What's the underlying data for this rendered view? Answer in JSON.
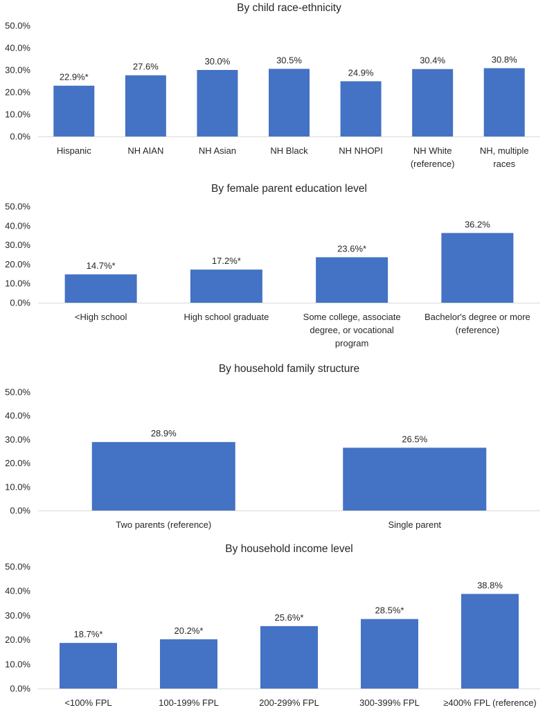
{
  "chart_data": [
    {
      "type": "bar",
      "title": "By child race-ethnicity",
      "categories": [
        "Hispanic",
        "NH AIAN",
        "NH Asian",
        "NH Black",
        "NH NHOPI",
        "NH White (reference)",
        "NH, multiple races"
      ],
      "category_lines": [
        [
          "Hispanic"
        ],
        [
          "NH AIAN"
        ],
        [
          "NH Asian"
        ],
        [
          "NH Black"
        ],
        [
          "NH NHOPI"
        ],
        [
          "NH White",
          "(reference)"
        ],
        [
          "NH, multiple",
          "races"
        ]
      ],
      "values": [
        22.9,
        27.6,
        30.0,
        30.5,
        24.9,
        30.4,
        30.8
      ],
      "data_labels": [
        "22.9%*",
        "27.6%",
        "30.0%",
        "30.5%",
        "24.9%",
        "30.4%",
        "30.8%"
      ],
      "y_ticks": [
        "0.0%",
        "10.0%",
        "20.0%",
        "30.0%",
        "40.0%",
        "50.0%"
      ],
      "ylim": [
        0,
        50
      ],
      "xlabel": "",
      "ylabel": "",
      "grid": false
    },
    {
      "type": "bar",
      "title": "By female parent education level",
      "categories": [
        "<High school",
        "High school graduate",
        "Some college, associate degree, or vocational program",
        "Bachelor's degree or more (reference)"
      ],
      "category_lines": [
        [
          "<High school"
        ],
        [
          "High school graduate"
        ],
        [
          "Some college, associate",
          "degree, or vocational",
          "program"
        ],
        [
          "Bachelor's degree or more",
          "(reference)"
        ]
      ],
      "values": [
        14.7,
        17.2,
        23.6,
        36.2
      ],
      "data_labels": [
        "14.7%*",
        "17.2%*",
        "23.6%*",
        "36.2%"
      ],
      "y_ticks": [
        "0.0%",
        "10.0%",
        "20.0%",
        "30.0%",
        "40.0%",
        "50.0%"
      ],
      "ylim": [
        0,
        50
      ],
      "xlabel": "",
      "ylabel": "",
      "grid": false
    },
    {
      "type": "bar",
      "title": "By household family structure",
      "categories": [
        "Two parents (reference)",
        "Single parent"
      ],
      "category_lines": [
        [
          "Two parents (reference)"
        ],
        [
          "Single parent"
        ]
      ],
      "values": [
        28.9,
        26.5
      ],
      "data_labels": [
        "28.9%",
        "26.5%"
      ],
      "y_ticks": [
        "0.0%",
        "10.0%",
        "20.0%",
        "30.0%",
        "40.0%",
        "50.0%"
      ],
      "ylim": [
        0,
        50
      ],
      "xlabel": "",
      "ylabel": "",
      "grid": false
    },
    {
      "type": "bar",
      "title": "By household income level",
      "categories": [
        "<100% FPL",
        "100-199% FPL",
        "200-299% FPL",
        "300-399% FPL",
        "≥400% FPL (reference)"
      ],
      "category_lines": [
        [
          "<100% FPL"
        ],
        [
          "100-199% FPL"
        ],
        [
          "200-299% FPL"
        ],
        [
          "300-399% FPL"
        ],
        [
          "≥400% FPL (reference)"
        ]
      ],
      "values": [
        18.7,
        20.2,
        25.6,
        28.5,
        38.8
      ],
      "data_labels": [
        "18.7%*",
        "20.2%*",
        "25.6%*",
        "28.5%*",
        "38.8%"
      ],
      "y_ticks": [
        "0.0%",
        "10.0%",
        "20.0%",
        "30.0%",
        "40.0%",
        "50.0%"
      ],
      "ylim": [
        0,
        50
      ],
      "xlabel": "",
      "ylabel": "",
      "grid": false
    }
  ],
  "colors": {
    "bar": "#4472C4",
    "axis": "#D9D9D9",
    "text": "#262626"
  }
}
